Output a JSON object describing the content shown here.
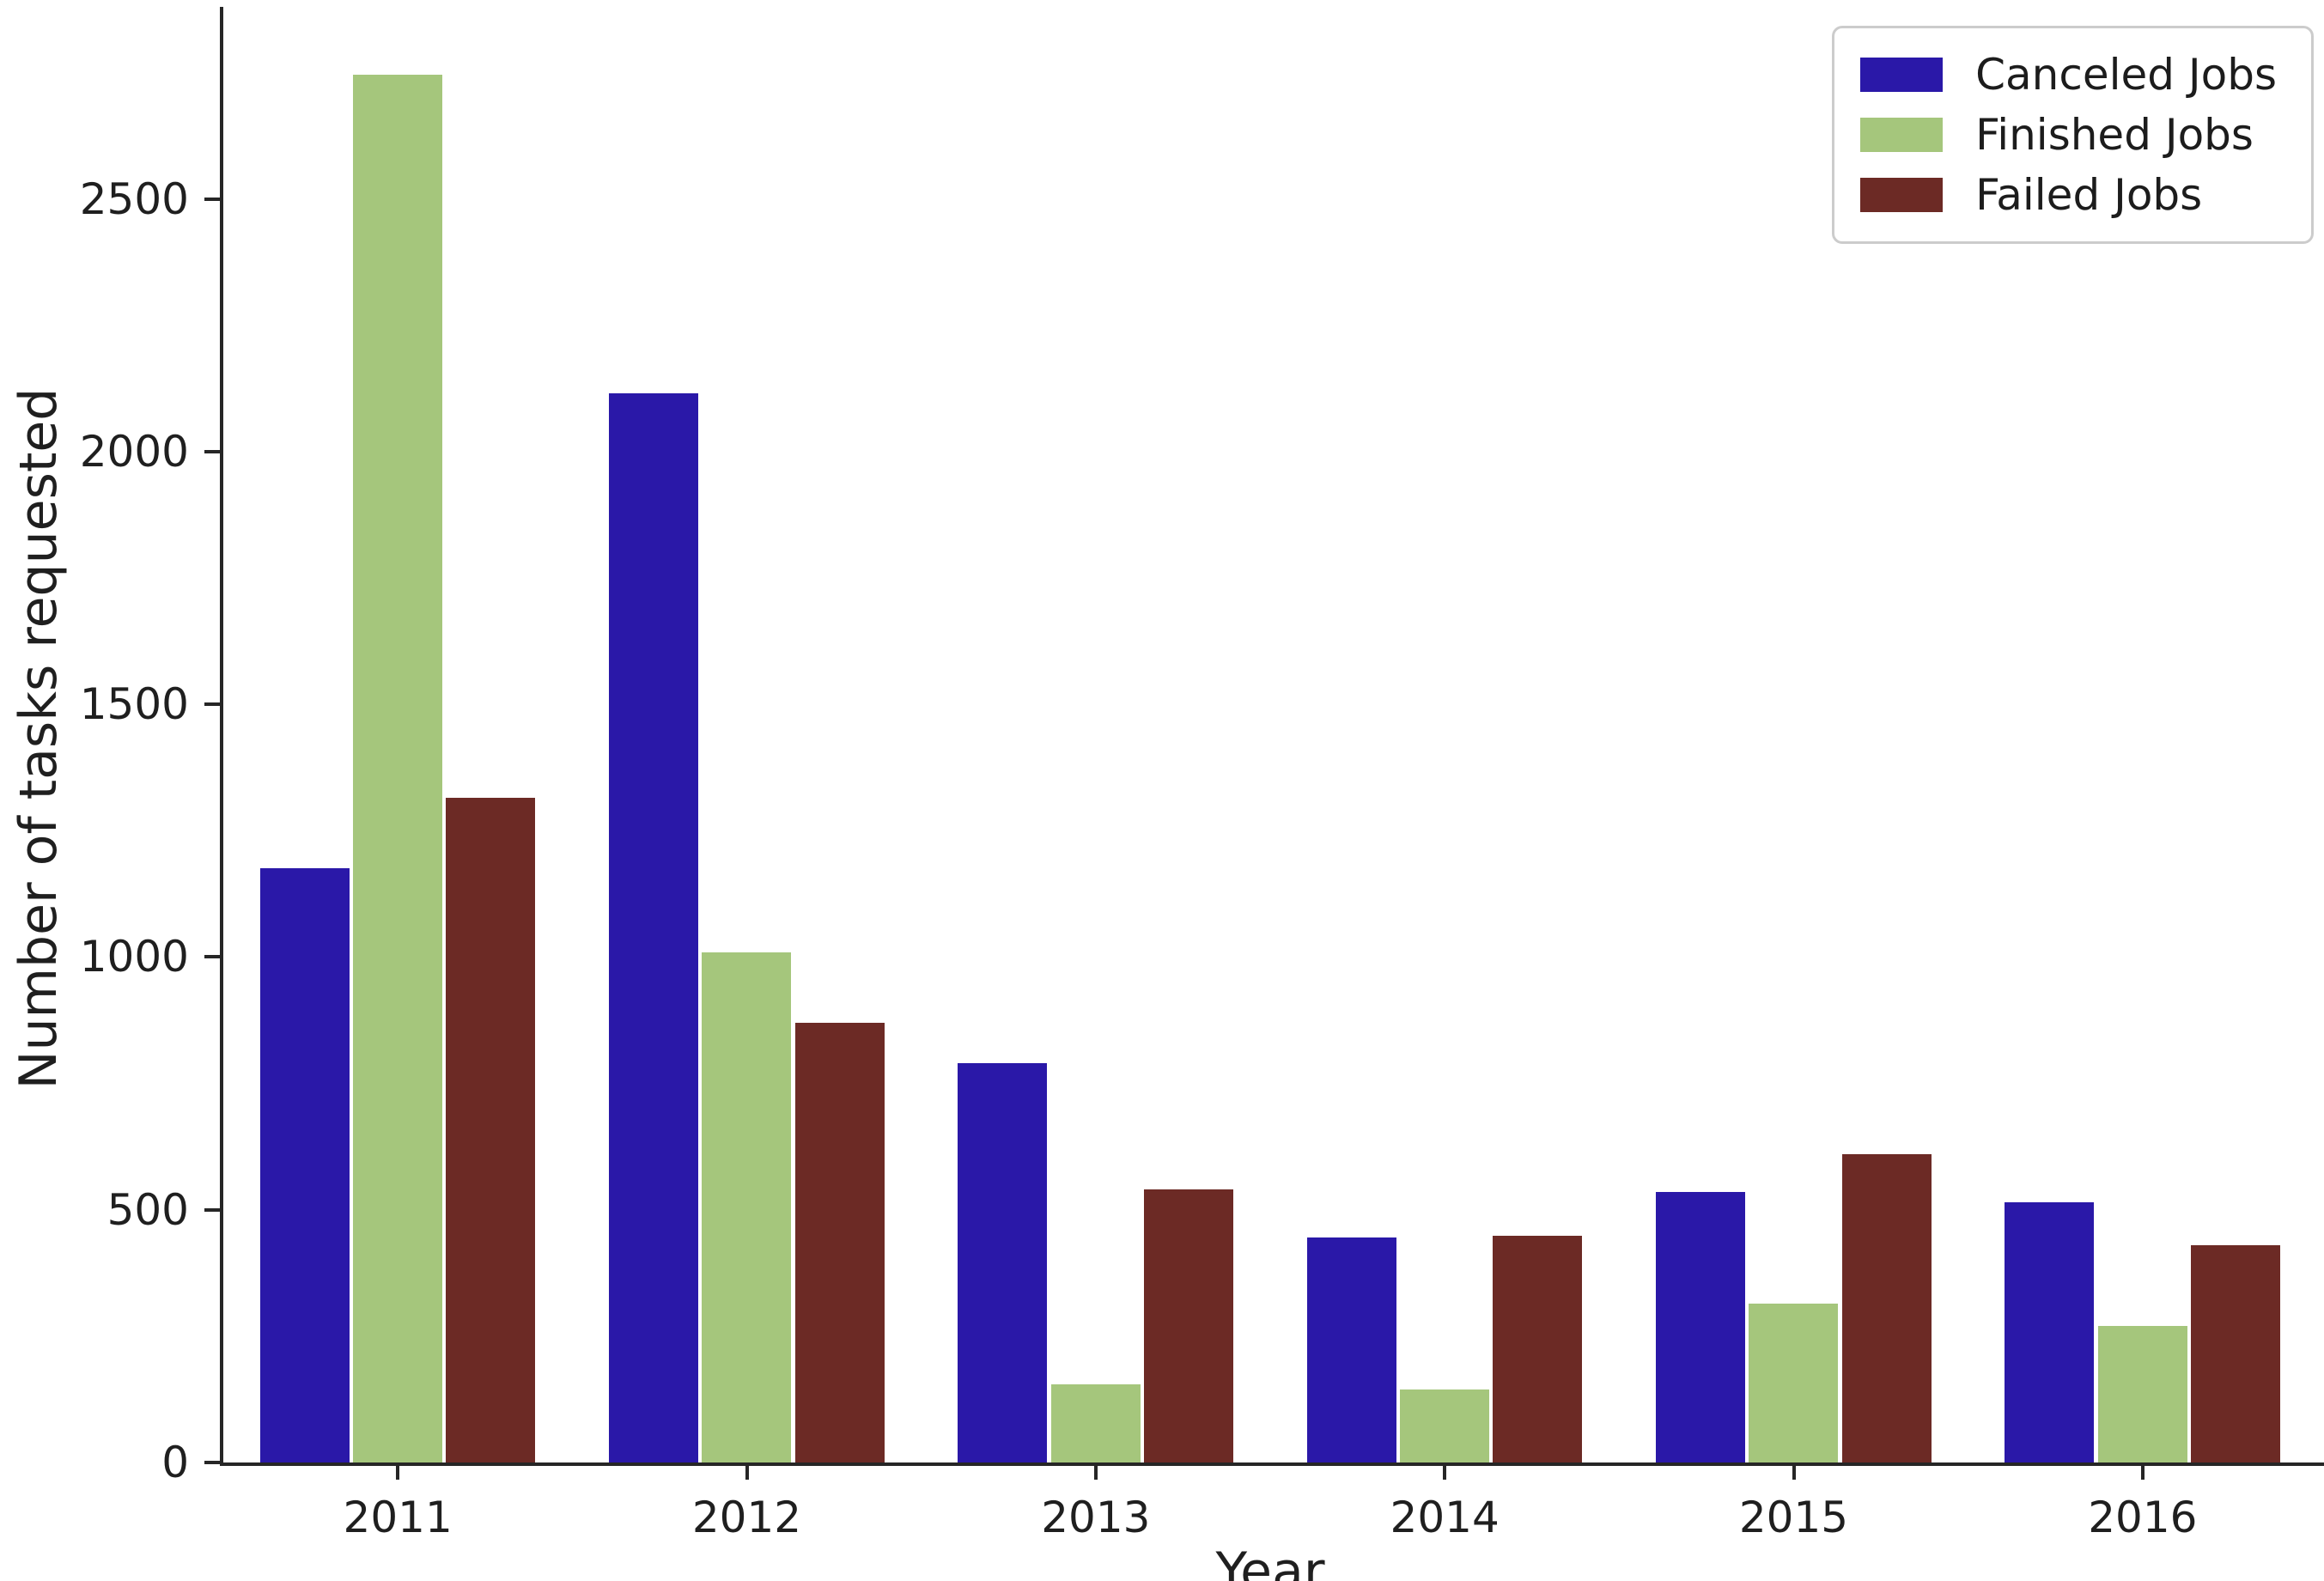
{
  "chart_data": {
    "type": "bar",
    "title": "",
    "xlabel": "Year",
    "ylabel": "Number of tasks requested",
    "categories": [
      "2011",
      "2012",
      "2013",
      "2014",
      "2015",
      "2016"
    ],
    "series": [
      {
        "name": "Canceled Jobs",
        "color": "#2a18a8",
        "values": [
          1175,
          2115,
          790,
          445,
          535,
          515
        ]
      },
      {
        "name": "Finished Jobs",
        "color": "#a5c67c",
        "values": [
          2745,
          1010,
          155,
          145,
          315,
          270
        ]
      },
      {
        "name": "Failed Jobs",
        "color": "#6c2a25",
        "values": [
          1315,
          870,
          540,
          448,
          610,
          430
        ]
      }
    ],
    "ylim": [
      0,
      2880
    ],
    "yticks": [
      0,
      500,
      1000,
      1500,
      2000,
      2500
    ],
    "legend_position": "upper right",
    "grid": false,
    "background_color": "#ffffff",
    "axis_color": "#262626",
    "text_color": "#1f1f1f"
  }
}
